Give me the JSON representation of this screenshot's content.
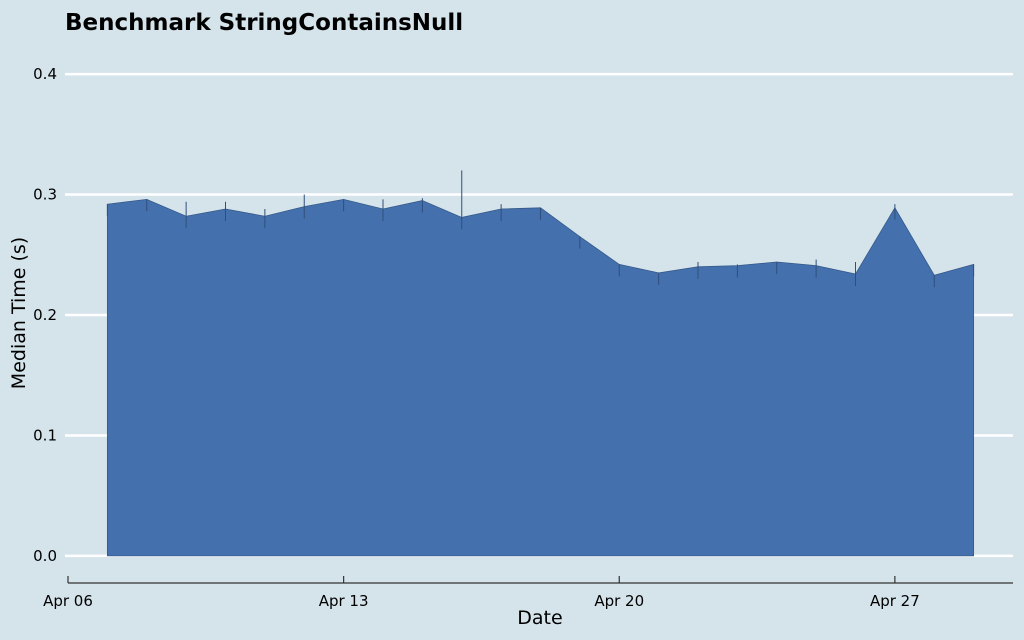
{
  "chart_data": {
    "type": "area",
    "title": "Benchmark StringContainsNull",
    "xlabel": "Date",
    "ylabel": "Median Time (s)",
    "x_tick_labels": [
      "Apr 06",
      "Apr 13",
      "Apr 20",
      "Apr 27"
    ],
    "x_ticks": [
      "2024-04-06",
      "2024-04-13",
      "2024-04-20",
      "2024-04-27"
    ],
    "xlim": [
      "2024-04-06",
      "2024-04-30"
    ],
    "y_ticks": [
      0.0,
      0.1,
      0.2,
      0.3,
      0.4
    ],
    "y_tick_labels": [
      "0.0",
      "0.1",
      "0.2",
      "0.3",
      "0.4"
    ],
    "ylim": [
      -0.02,
      0.42
    ],
    "grid": "horizontal",
    "color": "#4471ad",
    "series": [
      {
        "x": [
          "2024-04-07",
          "2024-04-08",
          "2024-04-09",
          "2024-04-10",
          "2024-04-11",
          "2024-04-12",
          "2024-04-13",
          "2024-04-14",
          "2024-04-15",
          "2024-04-16",
          "2024-04-17",
          "2024-04-18",
          "2024-04-19",
          "2024-04-20",
          "2024-04-21",
          "2024-04-22",
          "2024-04-23",
          "2024-04-24",
          "2024-04-25",
          "2024-04-26",
          "2024-04-27",
          "2024-04-28",
          "2024-04-29"
        ],
        "values": [
          0.292,
          0.296,
          0.282,
          0.288,
          0.282,
          0.29,
          0.296,
          0.288,
          0.295,
          0.281,
          0.288,
          0.289,
          0.265,
          0.242,
          0.235,
          0.24,
          0.241,
          0.244,
          0.241,
          0.234,
          0.289,
          0.233,
          0.242
        ],
        "spike_max": [
          0.292,
          0.296,
          0.294,
          0.294,
          0.288,
          0.3,
          0.296,
          0.296,
          0.297,
          0.32,
          0.292,
          0.289,
          0.265,
          0.242,
          0.235,
          0.244,
          0.242,
          0.244,
          0.246,
          0.244,
          0.292,
          0.233,
          0.242
        ]
      }
    ]
  }
}
